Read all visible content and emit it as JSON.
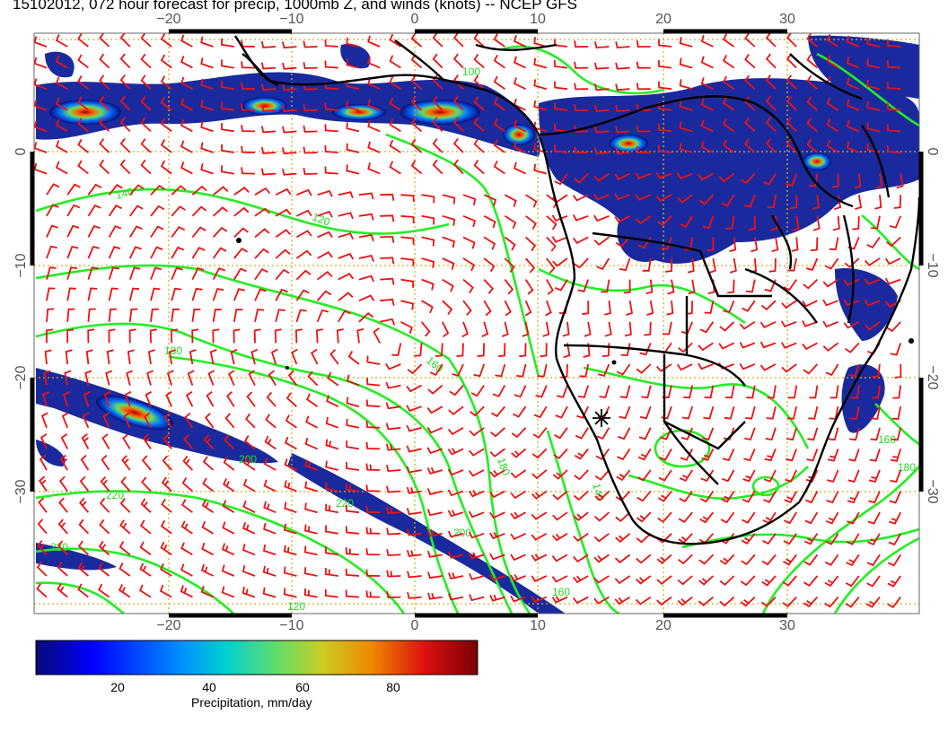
{
  "title": "15102012, 072 hour forecast for precip, 1000mb Z, and winds (knots) -- NCEP GFS",
  "map": {
    "lon_range": [
      -30,
      40
    ],
    "lat_range": [
      -40,
      10
    ],
    "x_ticks": [
      "−20",
      "−10",
      "0",
      "10",
      "20",
      "30"
    ],
    "y_ticks": [
      "0",
      "−10",
      "−20",
      "−30"
    ],
    "gridlines": "dotted",
    "contour_labels": [
      "100",
      "120",
      "140",
      "160",
      "180",
      "200",
      "220"
    ],
    "colors": {
      "gridline": "#d4b020",
      "contour": "#22ee22",
      "wind_barb": "#ee1111",
      "coastline": "#000000"
    }
  },
  "colorbar": {
    "label": "Precipitation, mm/day",
    "ticks": [
      "20",
      "40",
      "60",
      "80"
    ],
    "range": [
      0,
      100
    ],
    "colors": [
      "#0a0a78",
      "#0000ff",
      "#0090ff",
      "#00d0d0",
      "#66dd66",
      "#cccc22",
      "#ee8800",
      "#dd1111",
      "#7a0000"
    ]
  }
}
